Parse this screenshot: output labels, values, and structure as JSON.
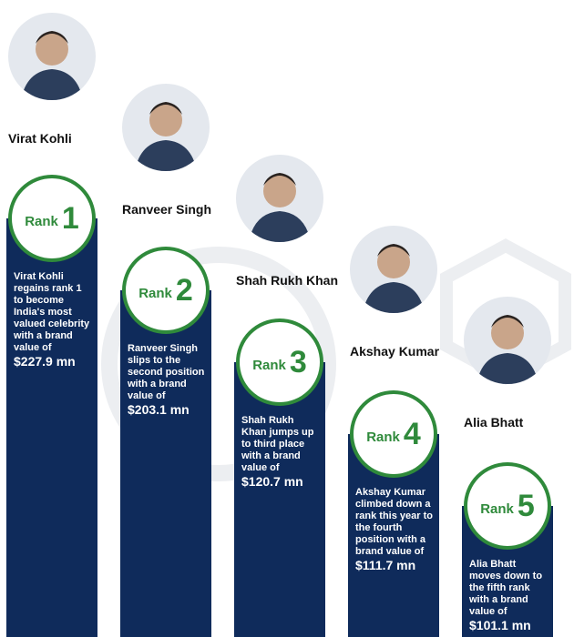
{
  "items": [
    {
      "name": "Virat Kohli",
      "rank_word": "Rank",
      "rank": "1",
      "description": "Virat Kohli regains rank 1 to become India's most valued celebrity with a brand value of",
      "value": "$227.9 mn"
    },
    {
      "name": "Ranveer Singh",
      "rank_word": "Rank",
      "rank": "2",
      "description": "Ranveer Singh slips to the second position with a brand value of",
      "value": "$203.1 mn"
    },
    {
      "name": "Shah Rukh Khan",
      "rank_word": "Rank",
      "rank": "3",
      "description": "Shah Rukh Khan jumps up to third place with a brand value of",
      "value": "$120.7 mn"
    },
    {
      "name": "Akshay Kumar",
      "rank_word": "Rank",
      "rank": "4",
      "description": "Akshay Kumar climbed down a rank this year to the fourth position with a brand value of",
      "value": "$111.7 mn"
    },
    {
      "name": "Alia Bhatt",
      "rank_word": "Rank",
      "rank": "5",
      "description": "Alia Bhatt moves down to the fifth rank with a brand value of",
      "value": "$101.1 mn"
    }
  ]
}
